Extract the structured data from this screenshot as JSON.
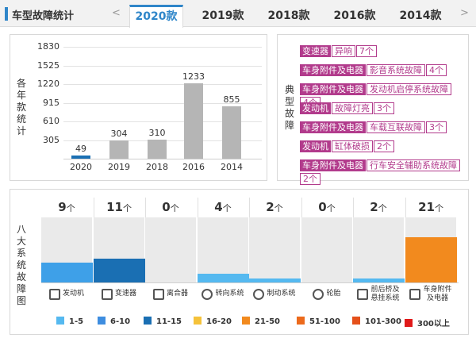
{
  "header": {
    "title": "车型故障统计",
    "tabs": [
      {
        "label": "2020款",
        "active": true
      },
      {
        "label": "2019款",
        "active": false
      },
      {
        "label": "2018款",
        "active": false
      },
      {
        "label": "2016款",
        "active": false
      },
      {
        "label": "2014款",
        "active": false
      }
    ],
    "prev_arrow": "<",
    "next_arrow": ">"
  },
  "yearly_chart": {
    "ylabel_chars": [
      "各",
      "年",
      "款",
      "统",
      "计"
    ],
    "chart_data": {
      "type": "bar",
      "title": "",
      "ylabel": "各年款统计",
      "categories": [
        "2020",
        "2019",
        "2018",
        "2016",
        "2014"
      ],
      "values": [
        49,
        304,
        310,
        1233,
        855
      ],
      "ylim": [
        0,
        1830
      ],
      "yticks": [
        305,
        610,
        915,
        1220,
        1525,
        1830
      ],
      "colors": [
        "#1a6fb3",
        "#b5b5b5",
        "#b5b5b5",
        "#b5b5b5",
        "#b5b5b5"
      ]
    },
    "value_labels": [
      "49",
      "304",
      "310",
      "1233",
      "855"
    ]
  },
  "typical_faults": {
    "label_chars": [
      "典",
      "型",
      "故",
      "障"
    ],
    "rows": [
      [
        {
          "text": "变速器",
          "style": "solid"
        },
        {
          "text": "异响",
          "style": "light"
        },
        {
          "text": "7个",
          "style": "light"
        }
      ],
      [
        {
          "text": "车身附件及电器",
          "style": "solid"
        },
        {
          "text": "影音系统故障",
          "style": "light"
        },
        {
          "text": "4个",
          "style": "light"
        }
      ],
      [
        {
          "text": "车身附件及电器",
          "style": "solid"
        },
        {
          "text": "发动机启停系统故障",
          "style": "light"
        },
        {
          "text": "4个",
          "style": "light"
        }
      ],
      [
        {
          "text": "发动机",
          "style": "solid"
        },
        {
          "text": "故障灯亮",
          "style": "light"
        },
        {
          "text": "3个",
          "style": "light"
        }
      ],
      [
        {
          "text": "车身附件及电器",
          "style": "solid"
        },
        {
          "text": "车载互联故障",
          "style": "light"
        },
        {
          "text": "3个",
          "style": "light"
        }
      ],
      [
        {
          "text": "发动机",
          "style": "solid"
        },
        {
          "text": "缸体破损",
          "style": "light"
        },
        {
          "text": "2个",
          "style": "light"
        }
      ],
      [
        {
          "text": "车身附件及电器",
          "style": "solid"
        },
        {
          "text": "行车安全辅助系统故障",
          "style": "light"
        },
        {
          "text": "2个",
          "style": "light"
        }
      ]
    ]
  },
  "systems": {
    "label_chars": [
      "八",
      "大",
      "系",
      "统",
      "故",
      "障",
      "图"
    ],
    "unit": "个",
    "items": [
      {
        "name": "发动机",
        "count": "9",
        "value": 9,
        "color": "#3ea0e8",
        "icon": "engine-icon"
      },
      {
        "name": "变速器",
        "count": "11",
        "value": 11,
        "color": "#1a6fb3",
        "icon": "gear-shift-icon"
      },
      {
        "name": "离合器",
        "count": "0",
        "value": 0,
        "color": "#eaeaea",
        "icon": "clutch-icon"
      },
      {
        "name": "转向系统",
        "count": "4",
        "value": 4,
        "color": "#55b9f0",
        "icon": "steering-wheel-icon"
      },
      {
        "name": "制动系统",
        "count": "2",
        "value": 2,
        "color": "#55b9f0",
        "icon": "brake-disc-icon"
      },
      {
        "name": "轮胎",
        "count": "0",
        "value": 0,
        "color": "#eaeaea",
        "icon": "tire-icon"
      },
      {
        "name": "前后桥及悬挂系统",
        "count": "2",
        "value": 2,
        "color": "#55b9f0",
        "icon": "suspension-icon"
      },
      {
        "name": "车身附件及电器",
        "count": "21",
        "value": 21,
        "color": "#f28a1e",
        "icon": "electrical-icon"
      }
    ],
    "sys_name_lines": [
      [
        "发动机"
      ],
      [
        "变速器"
      ],
      [
        "离合器"
      ],
      [
        "转向系统"
      ],
      [
        "制动系统"
      ],
      [
        "轮胎"
      ],
      [
        "前后桥及",
        "悬挂系统"
      ],
      [
        "车身附件",
        "及电器"
      ]
    ],
    "scale_max": 30
  },
  "legend": [
    {
      "label": "1-5",
      "color": "#55b9f0"
    },
    {
      "label": "6-10",
      "color": "#3e8de0"
    },
    {
      "label": "11-15",
      "color": "#1a6fb3"
    },
    {
      "label": "16-20",
      "color": "#f5c23a"
    },
    {
      "label": "21-50",
      "color": "#f28a1e"
    },
    {
      "label": "51-100",
      "color": "#ec6a1c"
    },
    {
      "label": "101-300",
      "color": "#e5501a"
    },
    {
      "label": "300以上",
      "color": "#e01a1a"
    }
  ]
}
